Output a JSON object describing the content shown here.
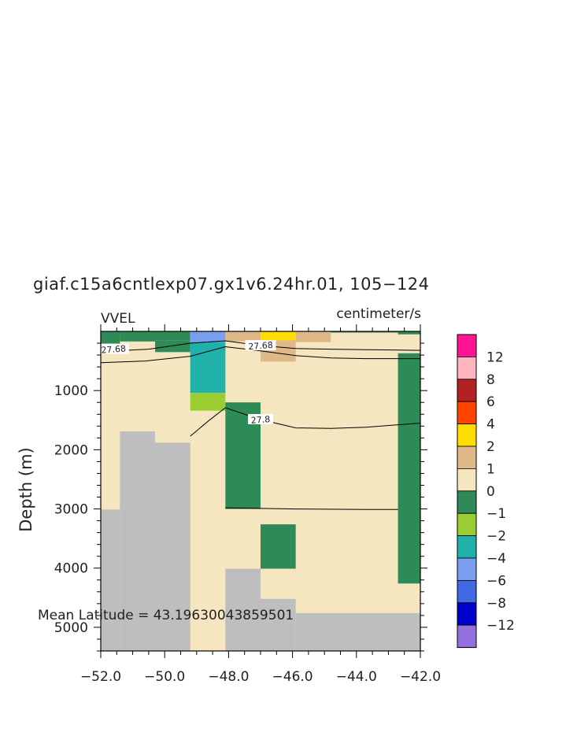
{
  "chart_data": {
    "type": "heatmap",
    "title": "giaf.c15a6cntlexp07.gx1v6.24hr.01, 105−124",
    "left_label": "VVEL",
    "units": "centimeter/s",
    "ylabel": "Depth (m)",
    "xlabel": "",
    "xlim": [
      -52,
      -42
    ],
    "ylim": [
      5400,
      0
    ],
    "x_ticks": [
      -52,
      -50,
      -48,
      -46,
      -44,
      -42
    ],
    "x_tick_labels": [
      "−52.0",
      "−50.0",
      "−48.0",
      "−46.0",
      "−44.0",
      "−42.0"
    ],
    "y_ticks": [
      1000,
      2000,
      3000,
      4000,
      5000
    ],
    "y_tick_labels": [
      "1000",
      "2000",
      "3000",
      "4000",
      "5000"
    ],
    "colorbar": {
      "level_labels": [
        "12",
        "8",
        "6",
        "4",
        "2",
        "1",
        "0",
        "−1",
        "−2",
        "−4",
        "−6",
        "−8",
        "−12"
      ],
      "colors": [
        "#ff1493",
        "#ffb6c1",
        "#b22222",
        "#ff4500",
        "#ffdd00",
        "#deb887",
        "#f5e6bf",
        "#2e8b57",
        "#9acd32",
        "#20b2aa",
        "#7b9ff0",
        "#4169e1",
        "#0000cd",
        "#9370db"
      ]
    },
    "colors": {
      "background": "#f5e6bf",
      "land": "#bebebe",
      "contour": "#000000"
    },
    "land_mask": [
      {
        "x": [
          -52.0,
          -51.4
        ],
        "depth_top": 3010
      },
      {
        "x": [
          -51.4,
          -50.3
        ],
        "depth_top": 1690
      },
      {
        "x": [
          -50.3,
          -49.2
        ],
        "depth_top": 1880
      },
      {
        "x": [
          -48.1,
          -47.0
        ],
        "depth_top": 4010
      },
      {
        "x": [
          -47.0,
          -45.9
        ],
        "depth_top": 4520
      },
      {
        "x": [
          -45.9,
          -42.0
        ],
        "depth_top": 4760
      }
    ],
    "cells": [
      {
        "x": [
          -52.0,
          -51.4
        ],
        "depth": [
          0,
          120
        ],
        "value": -1
      },
      {
        "x": [
          -52.0,
          -51.4
        ],
        "depth": [
          120,
          300
        ],
        "value": -0.5
      },
      {
        "x": [
          -51.4,
          -50.3
        ],
        "depth": [
          0,
          170
        ],
        "value": -0.5
      },
      {
        "x": [
          -50.3,
          -49.2
        ],
        "depth": [
          0,
          150
        ],
        "value": -1
      },
      {
        "x": [
          -50.3,
          -49.2
        ],
        "depth": [
          150,
          350
        ],
        "value": -0.5
      },
      {
        "x": [
          -49.2,
          -48.1
        ],
        "depth": [
          0,
          180
        ],
        "value": -6
      },
      {
        "x": [
          -49.2,
          -48.1
        ],
        "depth": [
          180,
          1040
        ],
        "value": -4
      },
      {
        "x": [
          -49.2,
          -48.1
        ],
        "depth": [
          1040,
          1340
        ],
        "value": -2
      },
      {
        "x": [
          -48.1,
          -47.0
        ],
        "depth": [
          0,
          170
        ],
        "value": 1.5
      },
      {
        "x": [
          -48.1,
          -47.0
        ],
        "depth": [
          1200,
          3000
        ],
        "value": -0.5
      },
      {
        "x": [
          -47.0,
          -45.9
        ],
        "depth": [
          0,
          150
        ],
        "value": 3
      },
      {
        "x": [
          -47.0,
          -45.9
        ],
        "depth": [
          150,
          510
        ],
        "value": 1.5
      },
      {
        "x": [
          -47.0,
          -45.9
        ],
        "depth": [
          3260,
          4010
        ],
        "value": -0.5
      },
      {
        "x": [
          -45.9,
          -44.8
        ],
        "depth": [
          0,
          180
        ],
        "value": 1.5
      },
      {
        "x": [
          -44.8,
          -42.7
        ],
        "depth": [
          0,
          20
        ],
        "value": -0.5
      },
      {
        "x": [
          -42.7,
          -42.0
        ],
        "depth": [
          0,
          50
        ],
        "value": -0.5
      },
      {
        "x": [
          -42.7,
          -42.0
        ],
        "depth": [
          370,
          4260
        ],
        "value": -0.5
      }
    ],
    "contours": [
      {
        "label": "27.68",
        "points": [
          [
            -52,
            340
          ],
          [
            -50.5,
            300
          ],
          [
            -49.2,
            200
          ],
          [
            -48.1,
            160
          ],
          [
            -47.0,
            240
          ],
          [
            -45.9,
            290
          ],
          [
            -44.8,
            300
          ],
          [
            -43.7,
            310
          ],
          [
            -42,
            320
          ]
        ]
      },
      {
        "label": "27.68",
        "points": [
          [
            -52,
            530
          ],
          [
            -50.6,
            500
          ],
          [
            -49.2,
            420
          ],
          [
            -48.1,
            260
          ],
          [
            -47.0,
            330
          ],
          [
            -45.9,
            410
          ],
          [
            -44.8,
            450
          ],
          [
            -43.7,
            460
          ],
          [
            -42,
            460
          ]
        ]
      },
      {
        "label": "27.8",
        "points": [
          [
            -49.2,
            1770
          ],
          [
            -48.6,
            1500
          ],
          [
            -48.1,
            1290
          ],
          [
            -47.0,
            1490
          ],
          [
            -45.9,
            1630
          ],
          [
            -44.8,
            1640
          ],
          [
            -43.7,
            1620
          ],
          [
            -42,
            1550
          ]
        ]
      },
      {
        "label": "",
        "points": [
          [
            -48.1,
            2980
          ],
          [
            -45.9,
            3000
          ],
          [
            -43.7,
            3010
          ],
          [
            -42.7,
            3010
          ]
        ]
      }
    ],
    "contour_labels": [
      {
        "text": "27.68",
        "x": -51.6,
        "depth": 300
      },
      {
        "text": "27.68",
        "x": -47.0,
        "depth": 240
      },
      {
        "text": "27.8",
        "x": -47.0,
        "depth": 1490
      }
    ],
    "footer": "Mean Latitude = 43.19630043859501"
  }
}
